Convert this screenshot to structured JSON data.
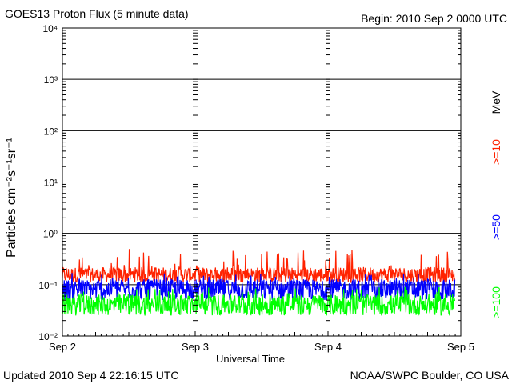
{
  "header": {
    "title": "GOES13 Proton Flux (5 minute data)",
    "begin": "Begin: 2010 Sep 2 0000 UTC"
  },
  "footer": {
    "updated": "Updated 2010 Sep  4 22:16:15 UTC",
    "source": "NOAA/SWPC Boulder, CO USA"
  },
  "chart_data": {
    "type": "line",
    "title": "GOES13 Proton Flux (5 minute data)",
    "xlabel": "Universal Time",
    "ylabel": "Particles cm⁻²s⁻¹sr⁻¹",
    "yscale": "log",
    "ylim": [
      0.01,
      10000
    ],
    "xlim": [
      "2010-09-02 00:00",
      "2010-09-05 00:00"
    ],
    "x_ticks": [
      "Sep 2",
      "Sep 3",
      "Sep 4",
      "Sep 5"
    ],
    "y_ticks": [
      {
        "value": 0.01,
        "label": "10⁻²"
      },
      {
        "value": 0.1,
        "label": "10⁻¹"
      },
      {
        "value": 1,
        "label": "10⁰"
      },
      {
        "value": 10,
        "label": "10¹"
      },
      {
        "value": 100,
        "label": "10²"
      },
      {
        "value": 1000,
        "label": "10³"
      },
      {
        "value": 10000,
        "label": "10⁴"
      }
    ],
    "grid": true,
    "unit_label": "MeV",
    "series": [
      {
        "name": ">=10",
        "color": "#ff2200",
        "typical": 0.17,
        "min": 0.11,
        "max": 0.5
      },
      {
        "name": ">=50",
        "color": "#0000ff",
        "typical": 0.09,
        "min": 0.05,
        "max": 0.17
      },
      {
        "name": ">=100",
        "color": "#00ff00",
        "typical": 0.045,
        "min": 0.025,
        "max": 0.09
      }
    ]
  }
}
